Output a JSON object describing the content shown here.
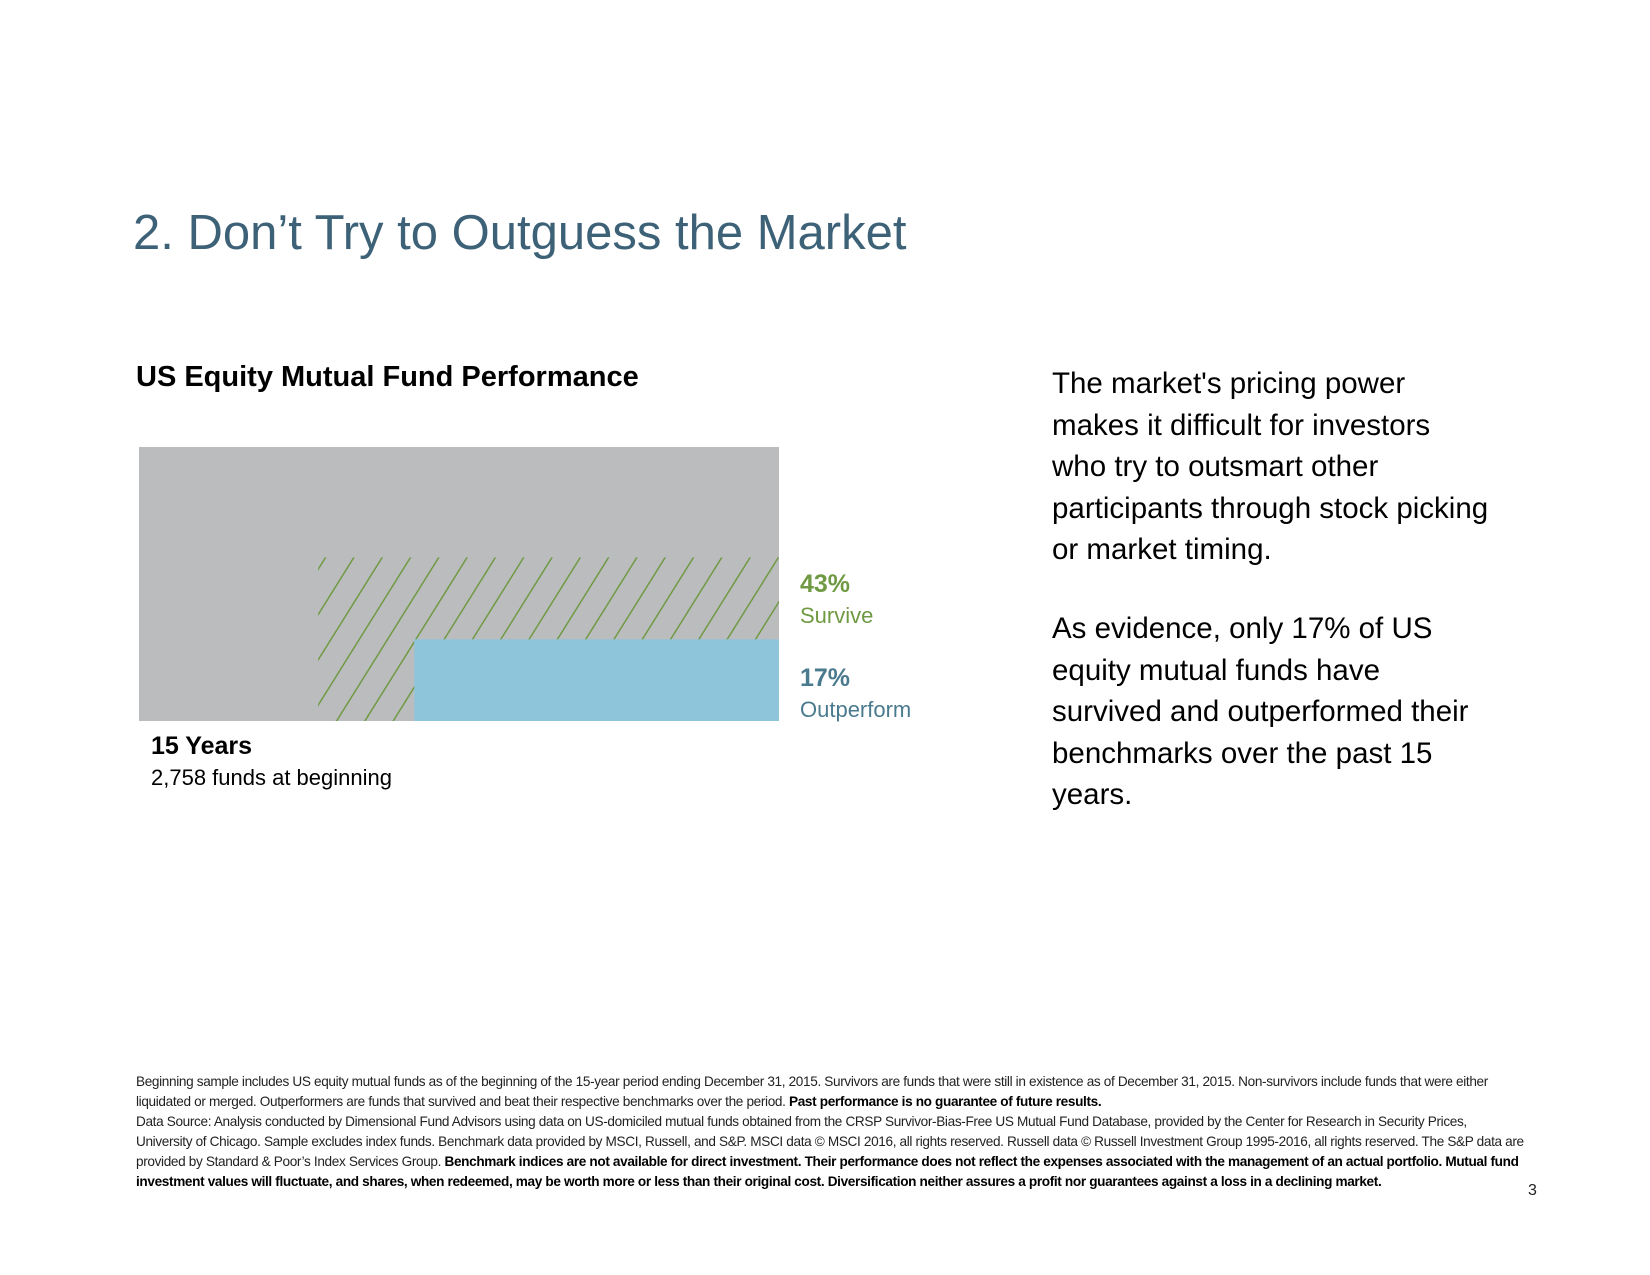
{
  "title": "2. Don’t Try to Outguess the Market",
  "chart_data": {
    "type": "bar",
    "title": "US Equity Mutual Fund Performance",
    "period_label": "15 Years",
    "base_label": "2,758 funds at beginning",
    "series": [
      {
        "name": "Survive",
        "value": 43,
        "label": "43%"
      },
      {
        "name": "Outperform",
        "value": 17,
        "label": "17%"
      }
    ],
    "unit": "%"
  },
  "colors": {
    "title": "#3d6278",
    "base_box": "#bbbcbe",
    "survive": "#6f9a43",
    "outperform": "#8fc5da",
    "outperform_text": "#4a7a8e"
  },
  "body": {
    "paragraph1": "The market's pricing power makes it difficult for investors who try to outsmart other participants through stock picking or market timing.",
    "paragraph2": "As evidence, only 17% of US equity mutual funds have survived and outperformed their benchmarks over the past 15 years."
  },
  "footnote": {
    "text1": "Beginning sample includes US equity mutual funds as of the beginning of the 15-year period ending December 31, 2015. Survivors are funds that were still in existence as of December 31, 2015. Non-survivors include funds that were either liquidated or merged. Outperformers are funds that survived and beat their respective benchmarks over the period. ",
    "bold1": "Past performance is no guarantee of future results.",
    "text2": "Data Source: Analysis conducted by Dimensional Fund Advisors using data on US-domiciled mutual funds obtained from the CRSP Survivor-Bias-Free US Mutual Fund Database, provided by the Center for Research in Security Prices, University of Chicago. Sample excludes index funds. Benchmark data provided by MSCI, Russell, and S&P. MSCI data © MSCI 2016, all rights reserved. Russell data © Russell Investment Group 1995-2016, all rights reserved. The S&P data are provided by Standard & Poor’s Index Services Group. ",
    "bold2": "Benchmark indices are not available for direct investment. Their performance does not reflect the expenses associated with the management of an actual portfolio. Mutual fund investment values will fluctuate, and shares, when redeemed, may be worth more or less than their original cost. Diversification neither assures a profit nor guarantees against a loss in a declining market."
  },
  "page_number": "3"
}
